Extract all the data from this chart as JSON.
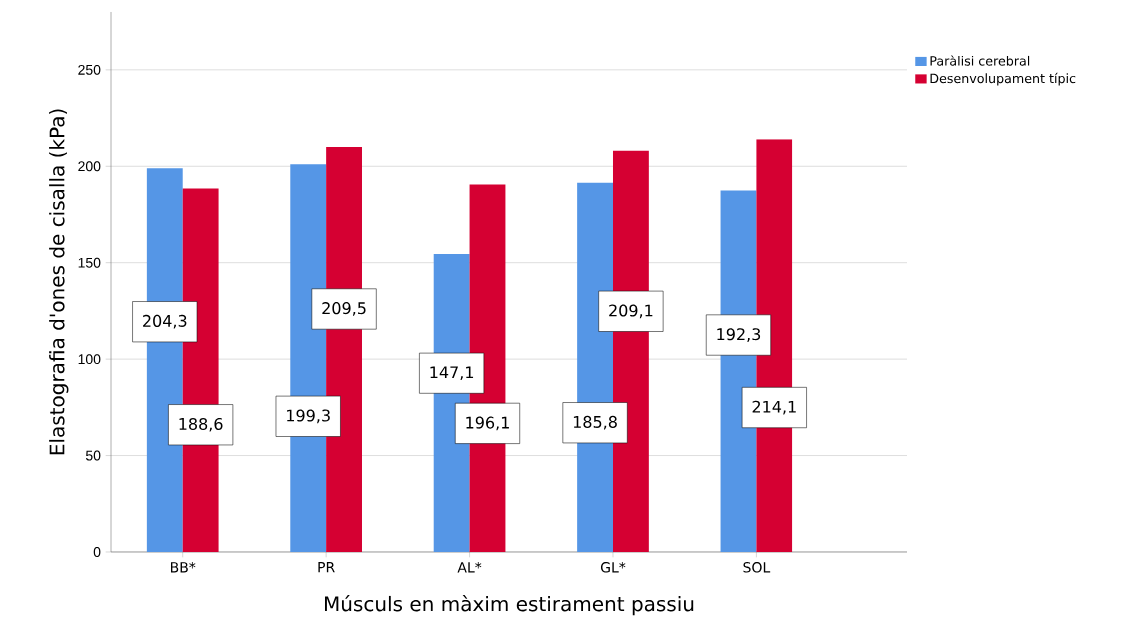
{
  "chart_data": {
    "type": "bar",
    "xlabel": "Músculs en màxim estirament passiu",
    "ylabel": "Elastografia d'ones de cisalla (kPa)",
    "categories": [
      "BB*",
      "PR",
      "AL*",
      "GL*",
      "SOL"
    ],
    "series": [
      {
        "name": "Paràlisi cerebral",
        "color": "#5596e6",
        "values": [
          199,
          201,
          154.5,
          191.5,
          187.5
        ]
      },
      {
        "name": "Desenvolupament típic",
        "color": "#d50032",
        "values": [
          188.5,
          210,
          190.5,
          208,
          214
        ]
      }
    ],
    "annotations": [
      "204,3",
      "188,6",
      "199,3",
      "209,5",
      "147,1",
      "196,1",
      "185,8",
      "209,1",
      "192,3",
      "214,1"
    ],
    "ylim": [
      0,
      280
    ],
    "yticks": [
      0,
      50,
      100,
      150,
      200,
      250
    ],
    "grid": "y",
    "legend": "top right"
  }
}
